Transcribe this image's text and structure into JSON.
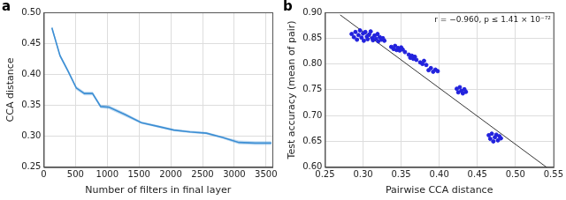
{
  "chart_data": [
    {
      "type": "line",
      "panel_label": "a",
      "x_label": "Number of filters in final layer",
      "y_label": "CCA distance",
      "x": [
        128,
        256,
        384,
        512,
        640,
        768,
        896,
        1024,
        1280,
        1536,
        1792,
        2048,
        2304,
        2560,
        2816,
        3072,
        3328,
        3584
      ],
      "values": [
        0.475,
        0.43,
        0.405,
        0.378,
        0.369,
        0.369,
        0.348,
        0.347,
        0.335,
        0.322,
        0.316,
        0.31,
        0.307,
        0.305,
        0.298,
        0.29,
        0.289,
        0.289
      ],
      "errors": [
        0.004,
        0.003,
        0.003,
        0.003,
        0.003,
        0.003,
        0.003,
        0.003,
        0.003,
        0.002,
        0.002,
        0.002,
        0.002,
        0.002,
        0.002,
        0.003,
        0.003,
        0.003
      ],
      "color": "#3d8fd4",
      "xlim": [
        0,
        3600
      ],
      "xticks": [
        0,
        500,
        1000,
        1500,
        2000,
        2500,
        3000,
        3500
      ],
      "ylim": [
        0.25,
        0.5
      ],
      "yticks": [
        0.25,
        {
          "value": 0.3,
          "label": "0.30"
        },
        0.35,
        {
          "value": 0.4,
          "label": "0.40"
        },
        0.45,
        {
          "value": 0.5,
          "label": "0.50"
        }
      ],
      "grid": true
    },
    {
      "type": "scatter",
      "panel_label": "b",
      "x_label": "Pairwise CCA distance",
      "y_label": "Test accuracy (mean of pair)",
      "annotation": "r = −0.960, p ≤ 1.41 × 10⁻⁷²",
      "x": [
        0.285,
        0.288,
        0.29,
        0.292,
        0.294,
        0.296,
        0.298,
        0.3,
        0.301,
        0.303,
        0.305,
        0.306,
        0.308,
        0.31,
        0.312,
        0.313,
        0.315,
        0.317,
        0.319,
        0.32,
        0.322,
        0.324,
        0.326,
        0.328,
        0.337,
        0.34,
        0.342,
        0.344,
        0.346,
        0.348,
        0.35,
        0.352,
        0.355,
        0.36,
        0.362,
        0.364,
        0.366,
        0.368,
        0.37,
        0.375,
        0.378,
        0.38,
        0.383,
        0.386,
        0.389,
        0.392,
        0.395,
        0.398,
        0.423,
        0.425,
        0.427,
        0.429,
        0.431,
        0.433,
        0.435,
        0.465,
        0.467,
        0.469,
        0.471,
        0.473,
        0.475,
        0.477,
        0.479,
        0.481
      ],
      "values": [
        0.858,
        0.852,
        0.862,
        0.847,
        0.856,
        0.865,
        0.851,
        0.859,
        0.845,
        0.862,
        0.853,
        0.848,
        0.857,
        0.863,
        0.85,
        0.846,
        0.855,
        0.849,
        0.858,
        0.844,
        0.852,
        0.847,
        0.85,
        0.845,
        0.833,
        0.829,
        0.835,
        0.827,
        0.831,
        0.826,
        0.832,
        0.828,
        0.823,
        0.818,
        0.812,
        0.816,
        0.81,
        0.814,
        0.808,
        0.803,
        0.8,
        0.806,
        0.798,
        0.788,
        0.792,
        0.785,
        0.789,
        0.786,
        0.752,
        0.745,
        0.755,
        0.748,
        0.743,
        0.751,
        0.746,
        0.662,
        0.655,
        0.665,
        0.65,
        0.658,
        0.663,
        0.652,
        0.66,
        0.656
      ],
      "color": "#2222dd",
      "fit": {
        "x": [
          0.27,
          0.55
        ],
        "values": [
          0.895,
          0.59
        ],
        "color": "#000000"
      },
      "xlim": [
        0.25,
        0.55
      ],
      "xticks": [
        0.25,
        {
          "value": 0.3,
          "label": "0.30"
        },
        0.35,
        {
          "value": 0.4,
          "label": "0.40"
        },
        0.45,
        {
          "value": 0.5,
          "label": "0.50"
        },
        0.55
      ],
      "ylim": [
        0.6,
        0.9
      ],
      "yticks": [
        {
          "value": 0.6,
          "label": "0.60"
        },
        0.65,
        {
          "value": 0.7,
          "label": "0.70"
        },
        0.75,
        {
          "value": 0.8,
          "label": "0.80"
        },
        0.85,
        {
          "value": 0.9,
          "label": "0.90"
        }
      ],
      "grid": true
    }
  ]
}
